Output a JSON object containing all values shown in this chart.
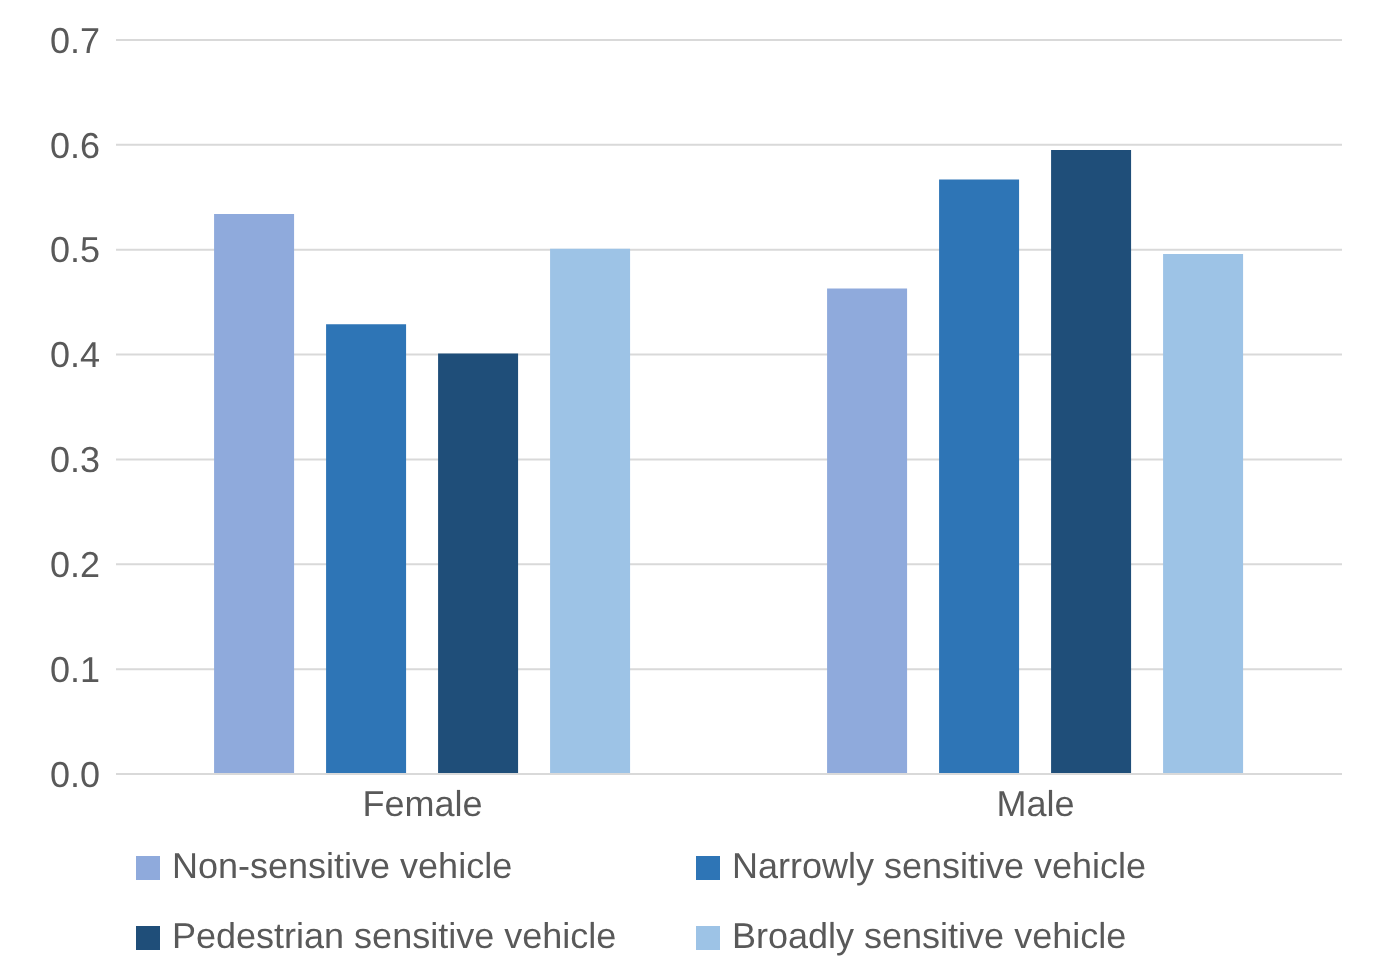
{
  "chart_data": {
    "type": "bar",
    "categories": [
      "Female",
      "Male"
    ],
    "series": [
      {
        "name": "Non-sensitive vehicle",
        "color": "#8faadc",
        "values": [
          0.534,
          0.463
        ]
      },
      {
        "name": "Narrowly sensitive vehicle",
        "color": "#2e75b6",
        "values": [
          0.429,
          0.567
        ]
      },
      {
        "name": "Pedestrian sensitive vehicle",
        "color": "#1f4e79",
        "values": [
          0.401,
          0.595
        ]
      },
      {
        "name": "Broadly sensitive vehicle",
        "color": "#9dc3e6",
        "values": [
          0.501,
          0.496
        ]
      }
    ],
    "ylim": [
      0,
      0.7
    ],
    "yticks": [
      {
        "value": 0,
        "label": "0.0"
      },
      {
        "value": 0.1,
        "label": "0.1"
      },
      {
        "value": 0.2,
        "label": "0.2"
      },
      {
        "value": 0.3,
        "label": "0.3"
      },
      {
        "value": 0.4,
        "label": "0.4"
      },
      {
        "value": 0.5,
        "label": "0.5"
      },
      {
        "value": 0.6,
        "label": "0.6"
      },
      {
        "value": 0.7,
        "label": "0.7"
      }
    ],
    "grid": "y",
    "legend": "bottom"
  }
}
